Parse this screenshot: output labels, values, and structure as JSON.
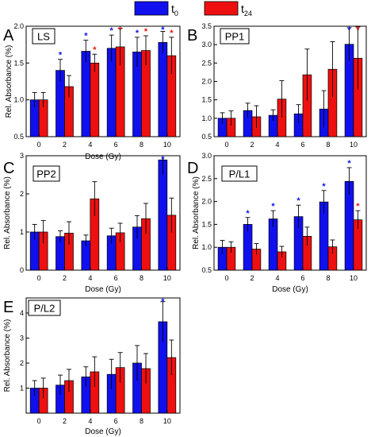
{
  "legend": {
    "items": [
      {
        "label": "t",
        "sub": "0",
        "color": "#1010ee"
      },
      {
        "label": "t",
        "sub": "24",
        "color": "#ee1010"
      }
    ]
  },
  "colors": {
    "t0": "#1010ee",
    "t24": "#ee1010",
    "axis": "#000000"
  },
  "chart_data": [
    {
      "type": "bar",
      "panel_letter": "A",
      "label": "LS",
      "categories": [
        "0",
        "2",
        "4",
        "6",
        "8",
        "10"
      ],
      "xlabel": "Dose (Gy)",
      "ylabel": "Rel. Absorbance (%)",
      "ylim": [
        0.5,
        2.0
      ],
      "yticks": [
        0.5,
        1.0,
        1.5,
        2.0
      ],
      "yticklabels": [
        "0.5",
        "1.0",
        "1.5",
        "2.0"
      ],
      "series": [
        {
          "name": "t0",
          "values": [
            1.0,
            1.4,
            1.66,
            1.7,
            1.65,
            1.78
          ],
          "errors": [
            0.1,
            0.15,
            0.15,
            0.18,
            0.2,
            0.15
          ],
          "sig": [
            false,
            true,
            true,
            true,
            true,
            true
          ]
        },
        {
          "name": "t24",
          "values": [
            1.0,
            1.18,
            1.5,
            1.72,
            1.67,
            1.6
          ],
          "errors": [
            0.1,
            0.15,
            0.12,
            0.25,
            0.2,
            0.25
          ],
          "sig": [
            false,
            false,
            true,
            true,
            true,
            true
          ]
        }
      ]
    },
    {
      "type": "bar",
      "panel_letter": "B",
      "label": "PP1",
      "categories": [
        "0",
        "2",
        "4",
        "6",
        "8",
        "10"
      ],
      "xlabel": "",
      "ylabel": "",
      "ylim": [
        0.5,
        3.5
      ],
      "yticks": [
        0.5,
        1.0,
        1.5,
        2.0,
        2.5,
        3.0,
        3.5
      ],
      "yticklabels": [
        "0.5",
        "1.0",
        "1.5",
        "2.0",
        "2.5",
        "3.0",
        "3.5"
      ],
      "series": [
        {
          "name": "t0",
          "values": [
            1.0,
            1.21,
            1.08,
            1.12,
            1.25,
            3.01
          ],
          "errors": [
            0.15,
            0.2,
            0.15,
            0.25,
            0.5,
            0.45
          ],
          "sig": [
            false,
            false,
            false,
            false,
            false,
            true
          ]
        },
        {
          "name": "t24",
          "values": [
            1.0,
            1.04,
            1.52,
            2.18,
            2.33,
            2.63
          ],
          "errors": [
            0.2,
            0.3,
            0.5,
            0.7,
            0.75,
            0.85
          ],
          "sig": [
            false,
            false,
            false,
            false,
            false,
            true
          ]
        }
      ]
    },
    {
      "type": "bar",
      "panel_letter": "C",
      "label": "PP2",
      "categories": [
        "0",
        "2",
        "4",
        "6",
        "8",
        "10"
      ],
      "xlabel": "Dose (Gy)",
      "ylabel": "Rel. Absorbance (%)",
      "ylim": [
        0,
        3
      ],
      "yticks": [
        0,
        1,
        2,
        3
      ],
      "yticklabels": [
        "0",
        "1",
        "2",
        "3"
      ],
      "series": [
        {
          "name": "t0",
          "values": [
            1.0,
            0.88,
            0.77,
            0.9,
            1.13,
            2.89
          ],
          "errors": [
            0.2,
            0.15,
            0.15,
            0.2,
            0.3,
            0.4
          ],
          "sig": [
            false,
            false,
            false,
            false,
            false,
            true
          ]
        },
        {
          "name": "t24",
          "values": [
            1.0,
            0.97,
            1.87,
            0.98,
            1.35,
            1.44
          ],
          "errors": [
            0.3,
            0.3,
            0.45,
            0.25,
            0.4,
            0.45
          ],
          "sig": [
            false,
            false,
            false,
            false,
            false,
            false
          ]
        }
      ]
    },
    {
      "type": "bar",
      "panel_letter": "D",
      "label": "P/L1",
      "categories": [
        "0",
        "2",
        "4",
        "6",
        "8",
        "10"
      ],
      "xlabel": "Dose (Gy)",
      "ylabel": "Rel. Absorbance (%)",
      "ylim": [
        0.5,
        3.0
      ],
      "yticks": [
        0.5,
        1.0,
        1.5,
        2.0,
        2.5,
        3.0
      ],
      "yticklabels": [
        "0.5",
        "1.0",
        "1.5",
        "2.0",
        "2.5",
        "3.0"
      ],
      "series": [
        {
          "name": "t0",
          "values": [
            1.0,
            1.5,
            1.62,
            1.67,
            1.99,
            2.44
          ],
          "errors": [
            0.15,
            0.15,
            0.18,
            0.25,
            0.25,
            0.3
          ],
          "sig": [
            false,
            true,
            true,
            true,
            true,
            true
          ]
        },
        {
          "name": "t24",
          "values": [
            1.0,
            0.96,
            0.9,
            1.24,
            1.01,
            1.6
          ],
          "errors": [
            0.12,
            0.12,
            0.12,
            0.2,
            0.15,
            0.2
          ],
          "sig": [
            false,
            false,
            false,
            false,
            false,
            true
          ]
        }
      ]
    },
    {
      "type": "bar",
      "panel_letter": "E",
      "label": "P/L2",
      "categories": [
        "0",
        "2",
        "4",
        "6",
        "8",
        "10"
      ],
      "xlabel": "Dose (Gy)",
      "ylabel": "Rel. Absorbance (%)",
      "ylim": [
        0,
        4.6
      ],
      "yticks": [
        1,
        2,
        3,
        4
      ],
      "yticklabels": [
        "1",
        "2",
        "3",
        "4"
      ],
      "series": [
        {
          "name": "t0",
          "values": [
            1.0,
            1.12,
            1.45,
            1.55,
            2.0,
            3.65
          ],
          "errors": [
            0.3,
            0.4,
            0.4,
            0.6,
            0.7,
            0.8
          ],
          "sig": [
            false,
            false,
            false,
            false,
            false,
            true
          ]
        },
        {
          "name": "t24",
          "values": [
            1.0,
            1.3,
            1.65,
            1.82,
            1.78,
            2.22
          ],
          "errors": [
            0.4,
            0.45,
            0.6,
            0.6,
            0.6,
            0.7
          ],
          "sig": [
            false,
            false,
            false,
            false,
            false,
            false
          ]
        }
      ]
    }
  ]
}
